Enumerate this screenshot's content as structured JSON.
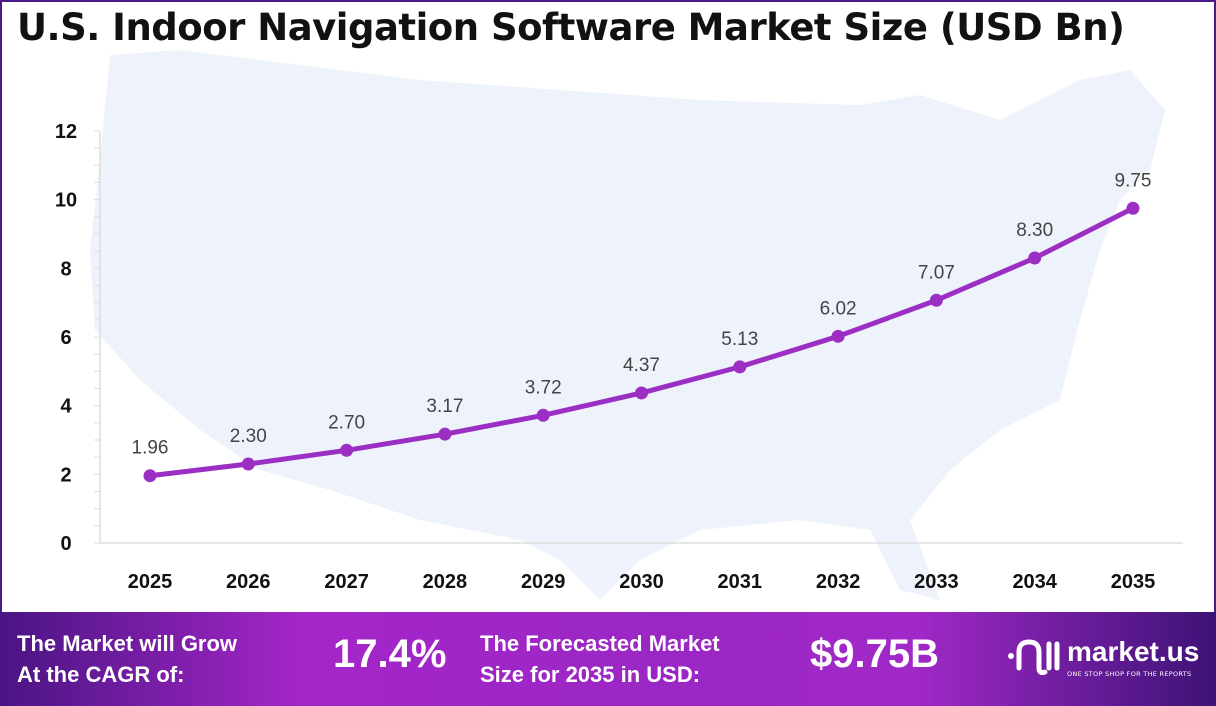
{
  "title": "U.S. Indoor Navigation Software Market Size (USD Bn)",
  "chart_data": {
    "type": "line",
    "title": "U.S. Indoor Navigation Software Market Size (USD Bn)",
    "categories": [
      "2025",
      "2026",
      "2027",
      "2028",
      "2029",
      "2030",
      "2031",
      "2032",
      "2033",
      "2034",
      "2035"
    ],
    "values": [
      1.96,
      2.3,
      2.7,
      3.17,
      3.72,
      4.37,
      5.13,
      6.02,
      7.07,
      8.3,
      9.75
    ],
    "data_labels": [
      "1.96",
      "2.30",
      "2.70",
      "3.17",
      "3.72",
      "4.37",
      "5.13",
      "6.02",
      "7.07",
      "8.30",
      "9.75"
    ],
    "yticks": [
      "0",
      "2",
      "4",
      "6",
      "8",
      "10",
      "12"
    ],
    "ylim": [
      0,
      12
    ],
    "xlabel": "",
    "ylabel": "",
    "grid": false,
    "line_color": "#9b2fc4",
    "background": "map of the United States (light blue silhouette)"
  },
  "footer": {
    "cagr_label_line1": "The Market will Grow",
    "cagr_label_line2": "At the CAGR of:",
    "cagr_value": "17.4%",
    "forecast_label_line1": "The Forecasted Market",
    "forecast_label_line2": "Size for 2035 in USD:",
    "forecast_value": "$9.75B",
    "logo_name": "market.us",
    "logo_tagline": "ONE STOP SHOP FOR THE REPORTS"
  }
}
